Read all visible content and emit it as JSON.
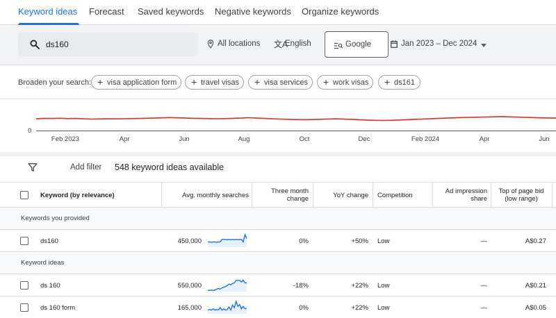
{
  "tabs": [
    {
      "label": "Keyword ideas",
      "active": true
    },
    {
      "label": "Forecast"
    },
    {
      "label": "Saved keywords"
    },
    {
      "label": "Negative keywords"
    },
    {
      "label": "Organize keywords"
    }
  ],
  "search": {
    "value": "ds160",
    "icon": "search-icon"
  },
  "filters": {
    "location": "All locations",
    "language": "English",
    "engine": "Google",
    "date_range": "Jan 2023 – Dec 2024"
  },
  "broaden": {
    "label": "Broaden your search:",
    "chips": [
      "visa application form",
      "travel visas",
      "visa services",
      "work visas",
      "ds161"
    ]
  },
  "graph": {
    "zero_label": "0",
    "x_labels": [
      "Feb 2023",
      "Apr",
      "Jun",
      "Aug",
      "Oct",
      "Dec",
      "Feb 2024",
      "Apr",
      "Jun"
    ],
    "line_color": "#d93025",
    "relative_values": [
      0.55,
      0.62,
      0.6,
      0.63,
      0.58,
      0.6,
      0.55,
      0.5,
      0.52,
      0.55,
      0.54,
      0.56,
      0.58,
      0.6,
      0.63,
      0.66,
      0.7,
      0.74,
      0.7,
      0.66,
      0.62,
      0.6,
      0.58,
      0.56,
      0.58,
      0.62,
      0.66,
      0.72,
      0.66,
      0.6,
      0.55,
      0.5,
      0.45,
      0.42,
      0.4,
      0.42,
      0.45,
      0.5,
      0.55,
      0.5,
      0.45,
      0.4,
      0.35,
      0.3,
      0.28,
      0.3,
      0.35,
      0.4,
      0.45,
      0.5,
      0.55,
      0.6,
      0.65,
      0.7,
      0.75,
      0.78,
      0.8,
      0.83,
      0.86,
      0.9,
      0.86,
      0.82,
      0.78,
      0.74,
      0.7,
      0.68,
      0.66
    ]
  },
  "toolbar": {
    "add_filter": "Add filter",
    "ideas_count": "548 keyword ideas available"
  },
  "table": {
    "columns": {
      "keyword": "Keyword (by relevance)",
      "avg": "Avg. monthly searches",
      "three_month": "Three month change",
      "yoy": "YoY change",
      "competition": "Competition",
      "ad_impression": "Ad impression share",
      "top_bid": "Top of page bid (low range)"
    },
    "groups": [
      {
        "label": "Keywords you provided",
        "rows": [
          {
            "keyword": "ds160",
            "avg": "450,000",
            "three_month": "0%",
            "yoy": "+50%",
            "competition": "Low",
            "ad_impression": "—",
            "top_bid": "A$0.27",
            "trend": [
              0.42,
              0.42,
              0.4,
              0.42,
              0.42,
              0.4,
              0.42,
              0.42,
              0.62,
              0.62,
              0.62,
              0.6,
              0.62,
              0.6,
              0.62,
              0.6,
              0.62,
              0.6,
              0.62,
              0.62,
              0.42,
              1.0,
              0.7
            ]
          }
        ]
      },
      {
        "label": "Keyword ideas",
        "rows": [
          {
            "keyword": "ds 160",
            "avg": "550,000",
            "three_month": "-18%",
            "yoy": "+22%",
            "competition": "Low",
            "ad_impression": "—",
            "top_bid": "A$0.21",
            "trend": [
              0.1,
              0.1,
              0.12,
              0.1,
              0.12,
              0.2,
              0.25,
              0.2,
              0.3,
              0.35,
              0.4,
              0.5,
              0.6,
              0.55,
              0.65,
              0.7,
              0.9,
              0.9,
              0.9,
              0.78,
              0.92,
              0.7,
              0.7
            ]
          },
          {
            "keyword": "ds 160 form",
            "avg": "165,000",
            "three_month": "0%",
            "yoy": "+22%",
            "competition": "Low",
            "ad_impression": "—",
            "top_bid": "A$0.05",
            "trend": [
              0.3,
              0.35,
              0.3,
              0.4,
              0.3,
              0.35,
              0.3,
              0.5,
              0.3,
              0.4,
              0.3,
              0.35,
              0.55,
              0.3,
              0.7,
              0.5,
              1.0,
              0.6,
              0.75,
              0.4,
              0.6,
              0.4,
              0.45
            ]
          }
        ]
      }
    ]
  },
  "colors": {
    "accent": "#1a73e8",
    "spark": "#1a73e8",
    "spark_fill": "#e8f0fe",
    "trend": "#d93025"
  }
}
